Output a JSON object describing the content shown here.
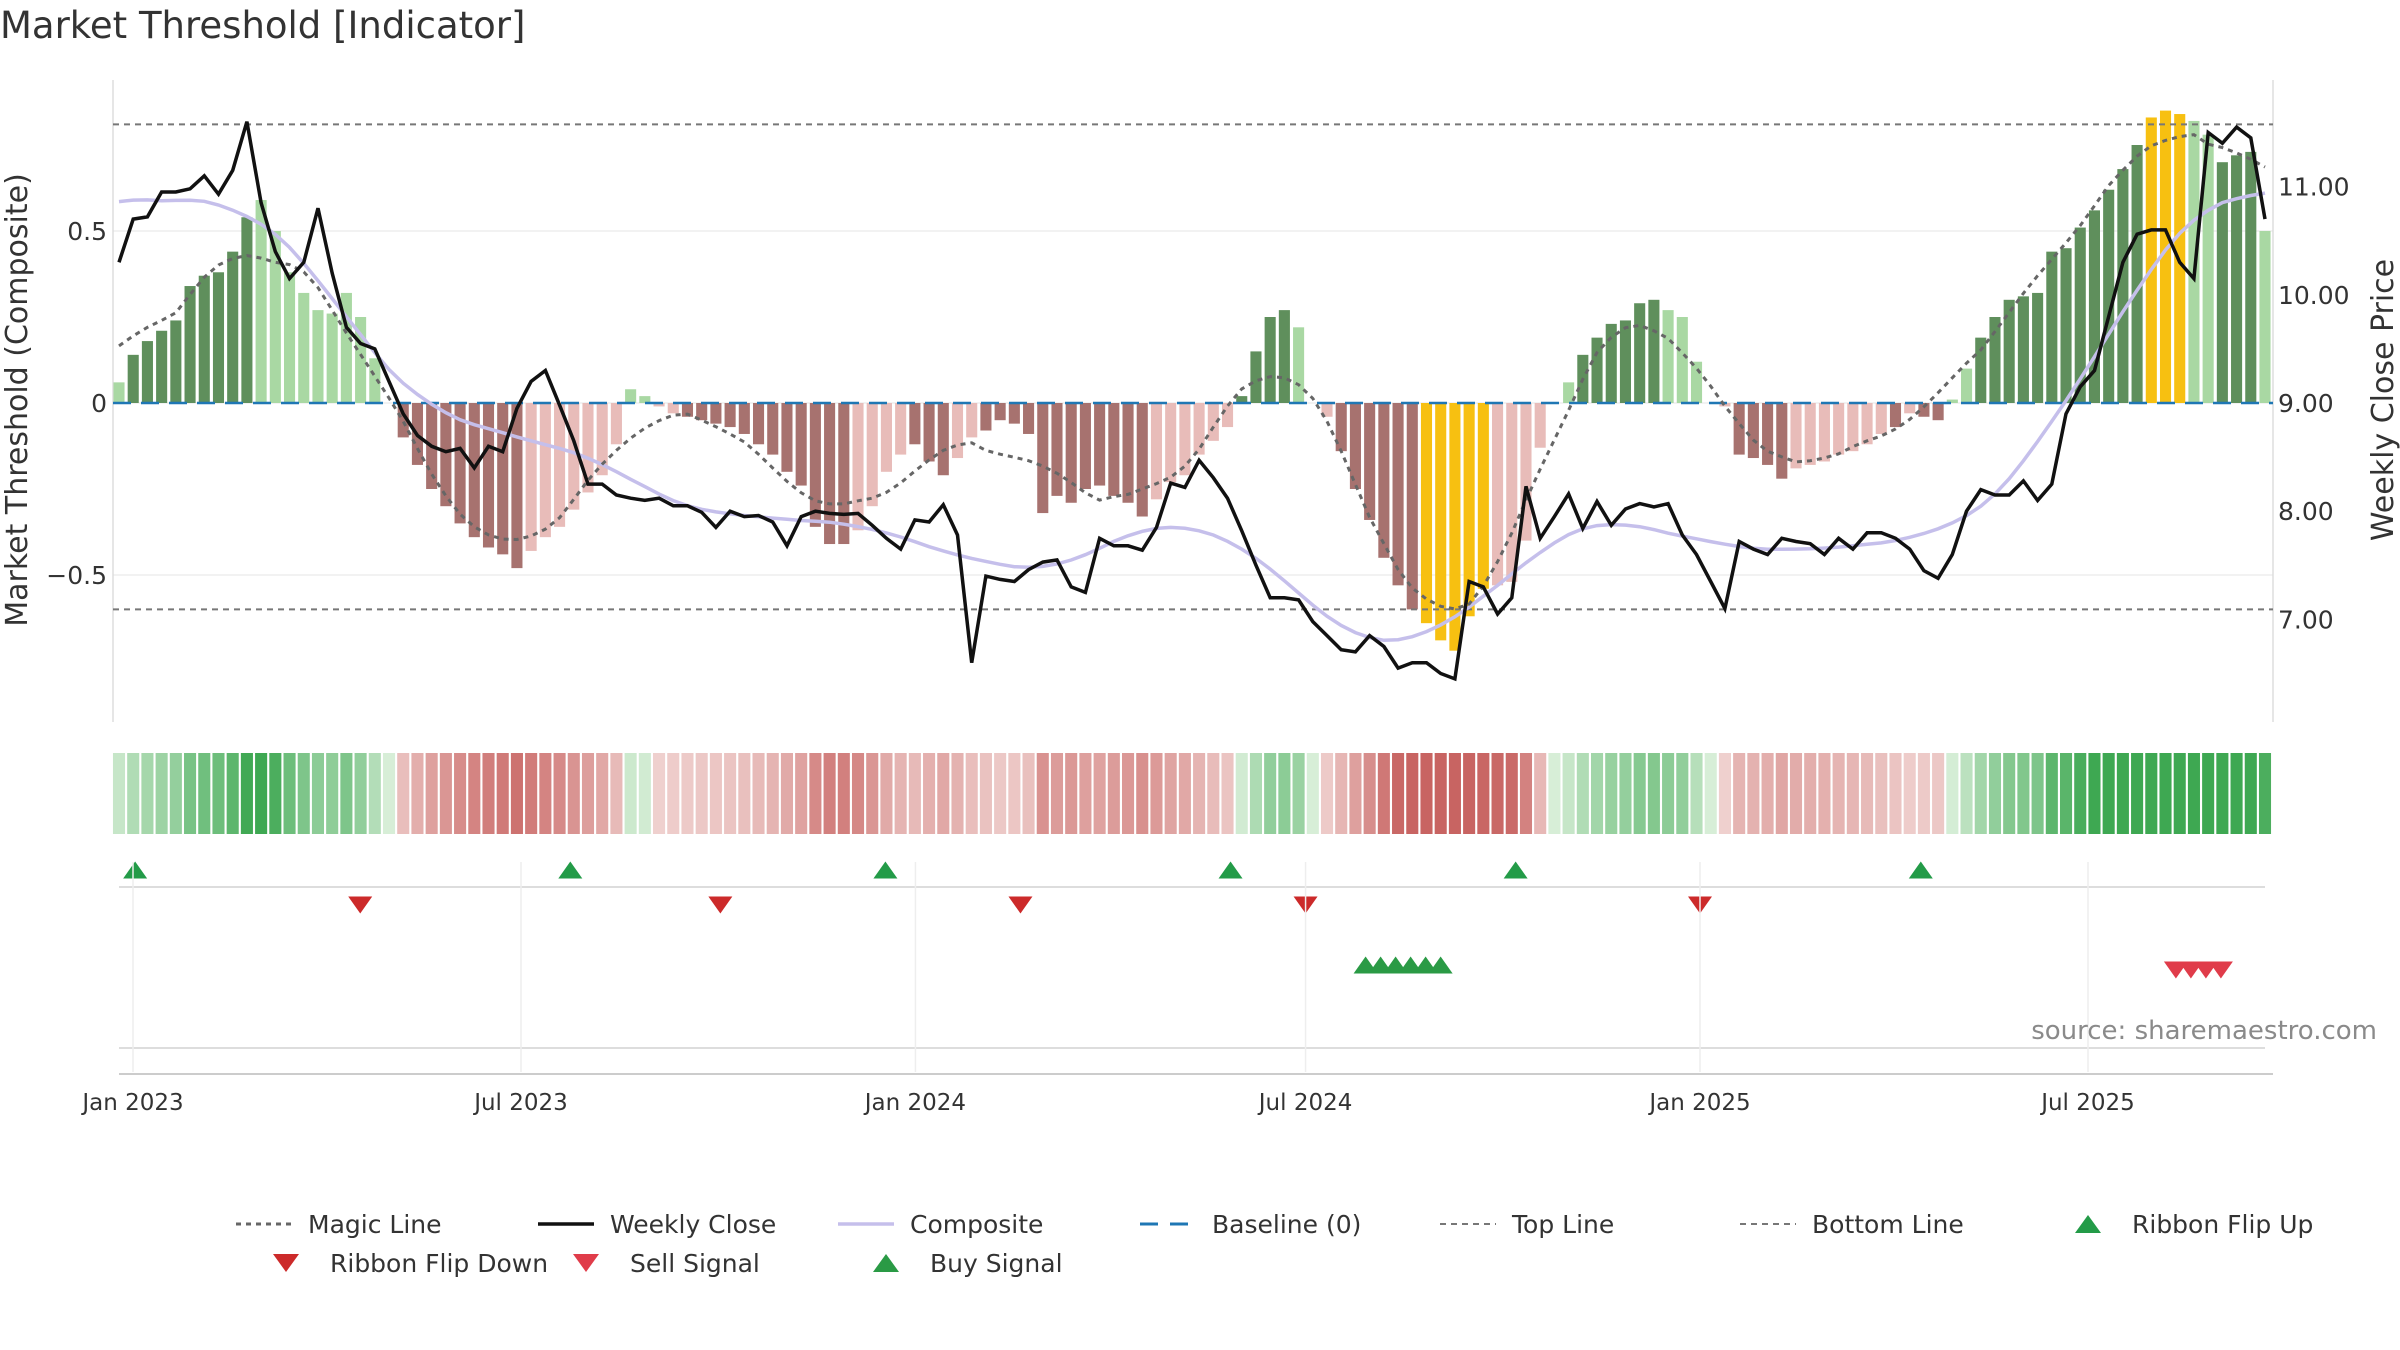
{
  "chart_data": {
    "type": "bar",
    "title": "Market Threshold [Indicator]",
    "ylabel_left": "Market Threshold (Composite)",
    "ylabel_right": "Weekly Close Price",
    "source": "source: sharemaestro.com",
    "left_axis": {
      "ylim": [
        -0.95,
        0.95
      ],
      "ticks": [
        0.5,
        0,
        -0.5
      ],
      "tick_labels": [
        "0.5",
        "0",
        "−0.5"
      ]
    },
    "right_axis": {
      "ylim": [
        6.0,
        12.0
      ],
      "ticks": [
        11,
        10,
        9,
        8,
        7
      ],
      "tick_labels": [
        "11.00",
        "10.00",
        "9.00",
        "8.00",
        "7.00"
      ]
    },
    "x_ticks": [
      {
        "date": "2023-01-01",
        "label": "Jan 2023"
      },
      {
        "date": "2023-07-01",
        "label": "Jul 2023"
      },
      {
        "date": "2024-01-01",
        "label": "Jan 2024"
      },
      {
        "date": "2024-07-01",
        "label": "Jul 2024"
      },
      {
        "date": "2025-01-01",
        "label": "Jan 2025"
      },
      {
        "date": "2025-07-01",
        "label": "Jul 2025"
      }
    ],
    "x_range": [
      "2022-12-25",
      "2025-10-30"
    ],
    "top_line": 0.81,
    "bottom_line": -0.6,
    "grid": "horizontal",
    "legend_placement": "bottom",
    "colors": {
      "bull_strong": "#5f8f5c",
      "bull_weak": "#a9d8a3",
      "bear_strong": "#a7726f",
      "bear_weak": "#e8bcb9",
      "extreme": "#f7c011",
      "weekly_close": "#111111",
      "magic_line": "#666666",
      "composite": "#c5bfeb",
      "baseline": "#1f77b4",
      "threshold_lines": "#777777",
      "ribbon_flip_up": "#239b48",
      "ribbon_flip_down": "#cc2a2a",
      "sell_signal": "#e03c4a",
      "buy_signal": "#2a9a45"
    },
    "bars": [
      0.06,
      0.14,
      0.18,
      0.21,
      0.24,
      0.34,
      0.37,
      0.38,
      0.44,
      0.54,
      0.59,
      0.5,
      0.38,
      0.32,
      0.27,
      0.26,
      0.32,
      0.25,
      0.13,
      0.0,
      -0.1,
      -0.18,
      -0.25,
      -0.3,
      -0.35,
      -0.39,
      -0.42,
      -0.44,
      -0.48,
      -0.43,
      -0.39,
      -0.36,
      -0.31,
      -0.26,
      -0.21,
      -0.12,
      0.04,
      0.02,
      -0.01,
      -0.03,
      -0.04,
      -0.05,
      -0.06,
      -0.07,
      -0.09,
      -0.12,
      -0.15,
      -0.2,
      -0.24,
      -0.36,
      -0.41,
      -0.41,
      -0.37,
      -0.3,
      -0.2,
      -0.15,
      -0.12,
      -0.17,
      -0.21,
      -0.16,
      -0.1,
      -0.08,
      -0.05,
      -0.06,
      -0.09,
      -0.32,
      -0.27,
      -0.29,
      -0.25,
      -0.24,
      -0.27,
      -0.29,
      -0.33,
      -0.28,
      -0.23,
      -0.21,
      -0.15,
      -0.11,
      -0.07,
      0.02,
      0.15,
      0.25,
      0.27,
      0.22,
      0.0,
      -0.04,
      -0.14,
      -0.25,
      -0.34,
      -0.45,
      -0.53,
      -0.6,
      -0.64,
      -0.69,
      -0.72,
      -0.62,
      -0.54,
      -0.53,
      -0.52,
      -0.4,
      -0.13,
      0.0,
      0.06,
      0.14,
      0.19,
      0.23,
      0.24,
      0.29,
      0.3,
      0.27,
      0.25,
      0.12,
      0.0,
      -0.01,
      -0.15,
      -0.16,
      -0.18,
      -0.22,
      -0.19,
      -0.18,
      -0.17,
      -0.15,
      -0.14,
      -0.12,
      -0.09,
      -0.07,
      -0.03,
      -0.04,
      -0.05,
      0.01,
      0.1,
      0.19,
      0.25,
      0.3,
      0.31,
      0.32,
      0.44,
      0.45,
      0.51,
      0.56,
      0.62,
      0.68,
      0.75,
      0.83,
      0.85,
      0.84,
      0.82,
      0.78,
      0.7,
      0.72,
      0.73,
      0.5
    ],
    "bar_style": [
      "ws",
      "bs",
      "bs",
      "bs",
      "bs",
      "bs",
      "bs",
      "bs",
      "bs",
      "bs",
      "bw",
      "bw",
      "bw",
      "bw",
      "bw",
      "bw",
      "bw",
      "bw",
      "bw",
      "bw",
      "rs",
      "rs",
      "rs",
      "rs",
      "rs",
      "rs",
      "rs",
      "rs",
      "rs",
      "rw",
      "rw",
      "rw",
      "rw",
      "rw",
      "rw",
      "rw",
      "bw",
      "bw",
      "rw",
      "rw",
      "rs",
      "rs",
      "rs",
      "rs",
      "rs",
      "rs",
      "rs",
      "rs",
      "rs",
      "rs",
      "rs",
      "rs",
      "rw",
      "rw",
      "rw",
      "rw",
      "rs",
      "rs",
      "rs",
      "rw",
      "rw",
      "rs",
      "rs",
      "rs",
      "rs",
      "rs",
      "rs",
      "rs",
      "rs",
      "rs",
      "rs",
      "rs",
      "rs",
      "rw",
      "rw",
      "rw",
      "rw",
      "rw",
      "rw",
      "bs",
      "bs",
      "bs",
      "bs",
      "bw",
      "rw",
      "rw",
      "rs",
      "rs",
      "rs",
      "rs",
      "rs",
      "rs",
      "ex",
      "ex",
      "ex",
      "ex",
      "ex",
      "rw",
      "rw",
      "rw",
      "rw",
      "bw",
      "bw",
      "bs",
      "bs",
      "bs",
      "bs",
      "bs",
      "bs",
      "bw",
      "bw",
      "bw",
      "bw",
      "rw",
      "rs",
      "rs",
      "rs",
      "rs",
      "rw",
      "rw",
      "rw",
      "rw",
      "rw",
      "rw",
      "rw",
      "rs",
      "rw",
      "rs",
      "rs",
      "bw",
      "bw",
      "bs",
      "bs",
      "bs",
      "bs",
      "bs",
      "bs",
      "bs",
      "bs",
      "bs",
      "bs",
      "bs",
      "bs",
      "ex",
      "ex",
      "ex",
      "bw",
      "bw",
      "bs",
      "bs",
      "bs",
      "bw"
    ],
    "weekly_close": [
      10.3,
      10.7,
      10.72,
      10.95,
      10.95,
      10.98,
      11.1,
      10.93,
      11.15,
      11.6,
      10.85,
      10.4,
      10.15,
      10.3,
      10.8,
      10.2,
      9.7,
      9.55,
      9.5,
      9.2,
      8.9,
      8.7,
      8.6,
      8.55,
      8.58,
      8.4,
      8.6,
      8.55,
      8.95,
      9.2,
      9.3,
      8.98,
      8.65,
      8.25,
      8.25,
      8.15,
      8.12,
      8.1,
      8.12,
      8.05,
      8.05,
      7.99,
      7.85,
      8.0,
      7.95,
      7.96,
      7.9,
      7.68,
      7.95,
      8.0,
      7.98,
      7.97,
      7.98,
      7.87,
      7.75,
      7.65,
      7.92,
      7.9,
      8.06,
      7.78,
      6.6,
      7.4,
      7.37,
      7.35,
      7.46,
      7.53,
      7.55,
      7.3,
      7.25,
      7.75,
      7.68,
      7.68,
      7.64,
      7.85,
      8.26,
      8.22,
      8.47,
      8.31,
      8.12,
      7.82,
      7.5,
      7.2,
      7.2,
      7.18,
      6.98,
      6.85,
      6.72,
      6.7,
      6.85,
      6.75,
      6.55,
      6.6,
      6.6,
      6.5,
      6.45,
      7.35,
      7.3,
      7.05,
      7.2,
      8.23,
      7.75,
      7.95,
      8.16,
      7.84,
      8.09,
      7.87,
      8.02,
      8.07,
      8.04,
      8.07,
      7.78,
      7.6,
      7.35,
      7.1,
      7.72,
      7.65,
      7.6,
      7.75,
      7.72,
      7.7,
      7.6,
      7.75,
      7.65,
      7.8,
      7.8,
      7.75,
      7.65,
      7.45,
      7.38,
      7.6,
      8.0,
      8.2,
      8.15,
      8.15,
      8.28,
      8.1,
      8.25,
      8.9,
      9.15,
      9.3,
      9.8,
      10.3,
      10.56,
      10.6,
      10.6,
      10.3,
      10.15,
      11.5,
      11.4,
      11.55,
      11.45,
      10.7
    ]
  },
  "legend": [
    {
      "key": "magic",
      "label": "Magic Line"
    },
    {
      "key": "close",
      "label": "Weekly Close"
    },
    {
      "key": "composite",
      "label": "Composite"
    },
    {
      "key": "baseline",
      "label": "Baseline (0)"
    },
    {
      "key": "top",
      "label": "Top Line"
    },
    {
      "key": "bottom",
      "label": "Bottom Line"
    },
    {
      "key": "flipup",
      "label": "Ribbon Flip Up"
    },
    {
      "key": "flipdown",
      "label": "Ribbon Flip Down"
    },
    {
      "key": "sell",
      "label": "Sell Signal"
    },
    {
      "key": "buy",
      "label": "Buy Signal"
    }
  ]
}
